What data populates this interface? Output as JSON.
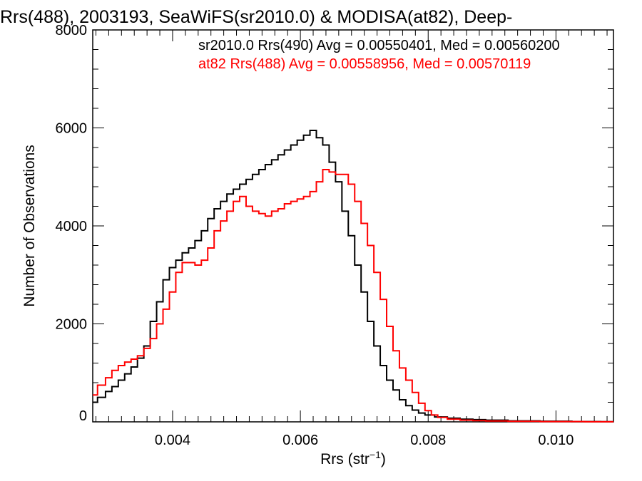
{
  "chart_data": {
    "type": "line",
    "step": true,
    "title": "Rrs(488), 2003193, SeaWiFS(sr2010.0) & MODISA(at82), Deep-",
    "xlabel": "Rrs (str",
    "xlabel_sup": "−1",
    "xlabel_end": ")",
    "ylabel": "Number of Observations",
    "xlim": [
      0.00275,
      0.0109
    ],
    "ylim": [
      0,
      8000
    ],
    "x_ticks": [
      0.004,
      0.006,
      0.008,
      0.01
    ],
    "x_tick_labels": [
      "0.004",
      "0.006",
      "0.008",
      "0.010"
    ],
    "y_ticks": [
      0,
      2000,
      4000,
      6000,
      8000
    ],
    "y_tick_labels": [
      "0",
      "2000",
      "4000",
      "6000",
      "8000"
    ],
    "grid": false,
    "legend_position": "top-right",
    "series": [
      {
        "name": "sr2010.0 Rrs(490) Avg = 0.00550401, Med = 0.00560200",
        "color": "#000000",
        "points": [
          [
            0.00275,
            400
          ],
          [
            0.0029,
            500
          ],
          [
            0.003,
            620
          ],
          [
            0.0031,
            720
          ],
          [
            0.0032,
            850
          ],
          [
            0.0033,
            980
          ],
          [
            0.0034,
            1120
          ],
          [
            0.0035,
            1300
          ],
          [
            0.0036,
            1550
          ],
          [
            0.0037,
            2050
          ],
          [
            0.0038,
            2450
          ],
          [
            0.0039,
            2900
          ],
          [
            0.004,
            3150
          ],
          [
            0.0041,
            3300
          ],
          [
            0.0042,
            3450
          ],
          [
            0.0043,
            3550
          ],
          [
            0.0044,
            3700
          ],
          [
            0.0045,
            3900
          ],
          [
            0.0046,
            4150
          ],
          [
            0.0047,
            4350
          ],
          [
            0.0048,
            4500
          ],
          [
            0.0049,
            4650
          ],
          [
            0.005,
            4750
          ],
          [
            0.0051,
            4850
          ],
          [
            0.0052,
            4950
          ],
          [
            0.0053,
            5050
          ],
          [
            0.0054,
            5150
          ],
          [
            0.0055,
            5250
          ],
          [
            0.0056,
            5350
          ],
          [
            0.0057,
            5450
          ],
          [
            0.0058,
            5550
          ],
          [
            0.0059,
            5650
          ],
          [
            0.006,
            5750
          ],
          [
            0.0061,
            5850
          ],
          [
            0.0062,
            5950
          ],
          [
            0.0063,
            5800
          ],
          [
            0.0064,
            5650
          ],
          [
            0.0065,
            5300
          ],
          [
            0.0066,
            4900
          ],
          [
            0.0067,
            4300
          ],
          [
            0.0068,
            3800
          ],
          [
            0.0069,
            3200
          ],
          [
            0.007,
            2650
          ],
          [
            0.0071,
            2050
          ],
          [
            0.0072,
            1550
          ],
          [
            0.0073,
            1150
          ],
          [
            0.0074,
            850
          ],
          [
            0.0075,
            650
          ],
          [
            0.0076,
            450
          ],
          [
            0.0077,
            330
          ],
          [
            0.0078,
            240
          ],
          [
            0.0079,
            180
          ],
          [
            0.008,
            140
          ],
          [
            0.0082,
            100
          ],
          [
            0.0084,
            75
          ],
          [
            0.0086,
            55
          ],
          [
            0.0088,
            45
          ],
          [
            0.009,
            35
          ],
          [
            0.0095,
            20
          ],
          [
            0.01,
            12
          ],
          [
            0.0105,
            6
          ],
          [
            0.0109,
            3
          ]
        ]
      },
      {
        "name": "at82 Rrs(488) Avg = 0.00558956, Med = 0.00570119",
        "color": "#ff0000",
        "points": [
          [
            0.00275,
            550
          ],
          [
            0.0029,
            750
          ],
          [
            0.003,
            900
          ],
          [
            0.0031,
            1050
          ],
          [
            0.0032,
            1150
          ],
          [
            0.0033,
            1220
          ],
          [
            0.0034,
            1280
          ],
          [
            0.0035,
            1350
          ],
          [
            0.0036,
            1500
          ],
          [
            0.0037,
            1700
          ],
          [
            0.0038,
            2000
          ],
          [
            0.0039,
            2300
          ],
          [
            0.004,
            2650
          ],
          [
            0.0041,
            3050
          ],
          [
            0.0042,
            3250
          ],
          [
            0.0043,
            3250
          ],
          [
            0.0044,
            3200
          ],
          [
            0.0045,
            3300
          ],
          [
            0.0046,
            3550
          ],
          [
            0.0047,
            3900
          ],
          [
            0.0048,
            4100
          ],
          [
            0.0049,
            4300
          ],
          [
            0.005,
            4500
          ],
          [
            0.0051,
            4600
          ],
          [
            0.0052,
            4400
          ],
          [
            0.0053,
            4300
          ],
          [
            0.0054,
            4250
          ],
          [
            0.0055,
            4200
          ],
          [
            0.0056,
            4300
          ],
          [
            0.0057,
            4350
          ],
          [
            0.0058,
            4450
          ],
          [
            0.0059,
            4500
          ],
          [
            0.006,
            4550
          ],
          [
            0.0061,
            4600
          ],
          [
            0.0062,
            4700
          ],
          [
            0.0063,
            4900
          ],
          [
            0.0064,
            5150
          ],
          [
            0.0065,
            5100
          ],
          [
            0.0066,
            5050
          ],
          [
            0.0067,
            5050
          ],
          [
            0.0068,
            4850
          ],
          [
            0.0069,
            4500
          ],
          [
            0.007,
            4050
          ],
          [
            0.0071,
            3600
          ],
          [
            0.0072,
            3050
          ],
          [
            0.0073,
            2500
          ],
          [
            0.0074,
            1950
          ],
          [
            0.0075,
            1450
          ],
          [
            0.0076,
            1100
          ],
          [
            0.0077,
            850
          ],
          [
            0.0078,
            600
          ],
          [
            0.0079,
            380
          ],
          [
            0.008,
            230
          ],
          [
            0.0081,
            140
          ],
          [
            0.0082,
            90
          ],
          [
            0.0084,
            55
          ],
          [
            0.0086,
            35
          ],
          [
            0.0088,
            25
          ],
          [
            0.009,
            18
          ],
          [
            0.0095,
            10
          ],
          [
            0.01,
            5
          ],
          [
            0.0109,
            2
          ]
        ]
      }
    ]
  }
}
